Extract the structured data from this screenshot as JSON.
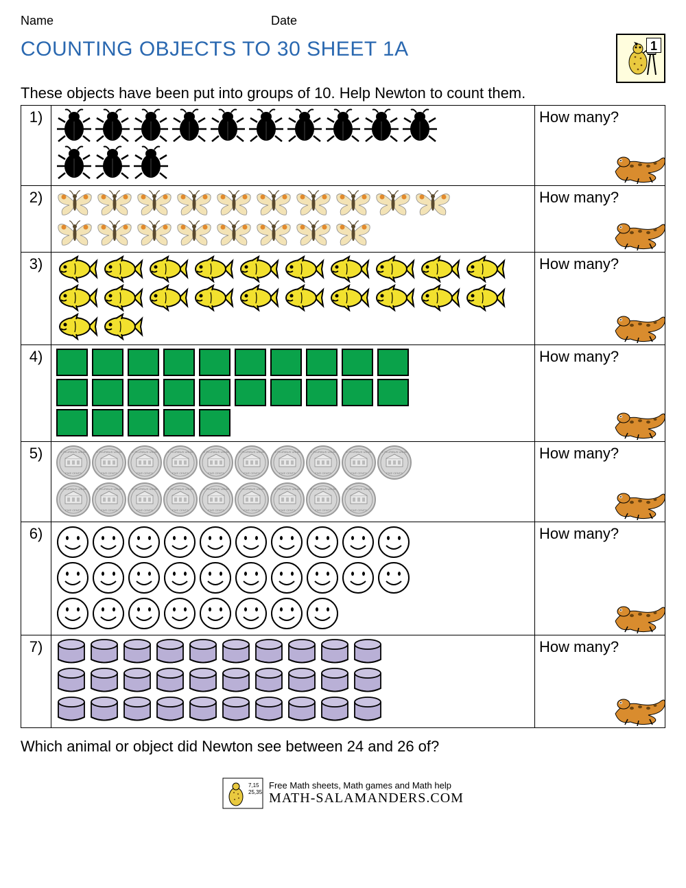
{
  "header": {
    "name_label": "Name",
    "date_label": "Date"
  },
  "badge": {
    "grade_number": "1"
  },
  "title": "COUNTING OBJECTS TO 30 SHEET 1A",
  "instructions": "These objects have been put into groups of 10. Help Newton to count them.",
  "how_many_label": "How many?",
  "questions": [
    {
      "num": "1)",
      "object_type": "beetle",
      "rows": [
        10,
        3
      ],
      "count": 13,
      "item_w": 54,
      "item_h": 52,
      "gap": 2,
      "colors": {
        "body": "#000000"
      }
    },
    {
      "num": "2)",
      "object_type": "butterfly",
      "rows": [
        10,
        8
      ],
      "count": 18,
      "item_w": 56,
      "item_h": 42,
      "gap": 2,
      "colors": {
        "wing": "#f3e3b6",
        "spot": "#e28b2d",
        "body": "#5a4a2e"
      }
    },
    {
      "num": "3)",
      "object_type": "fish",
      "rows": [
        10,
        10,
        2
      ],
      "count": 22,
      "item_w": 62,
      "item_h": 40,
      "gap": 4,
      "colors": {
        "body": "#f2e12e",
        "outline": "#000000"
      }
    },
    {
      "num": "4)",
      "object_type": "square",
      "rows": [
        10,
        10,
        5
      ],
      "count": 25,
      "item_w": 48,
      "item_h": 42,
      "gap": 4,
      "colors": {
        "fill": "#0aa24a",
        "outline": "#000000"
      }
    },
    {
      "num": "5)",
      "object_type": "coin",
      "rows": [
        10,
        9
      ],
      "count": 19,
      "item_w": 52,
      "item_h": 52,
      "gap": 0,
      "colors": {
        "fill": "#d6d6d6",
        "rim": "#9a9a9a"
      }
    },
    {
      "num": "6)",
      "object_type": "smiley",
      "rows": [
        10,
        10,
        8
      ],
      "count": 28,
      "item_w": 50,
      "item_h": 50,
      "gap": 2,
      "colors": {
        "stroke": "#000000",
        "fill": "#ffffff"
      }
    },
    {
      "num": "7)",
      "object_type": "cylinder",
      "rows": [
        10,
        10,
        10
      ],
      "count": 30,
      "item_w": 46,
      "item_h": 40,
      "gap": 2,
      "colors": {
        "fill": "#b9b0d6",
        "outline": "#000000",
        "top": "#cbc4e2"
      }
    }
  ],
  "bottom_question": "Which animal or object did Newton see between 24 and 26 of?",
  "footer": {
    "line1": "Free Math sheets, Math games and Math help",
    "site": "MATH-SALAMANDERS.COM"
  },
  "colors": {
    "title": "#2a68b0",
    "border": "#000000",
    "mascot_body": "#d98c2e",
    "mascot_spot": "#6b4410",
    "badge_bg": "#fffddd"
  }
}
